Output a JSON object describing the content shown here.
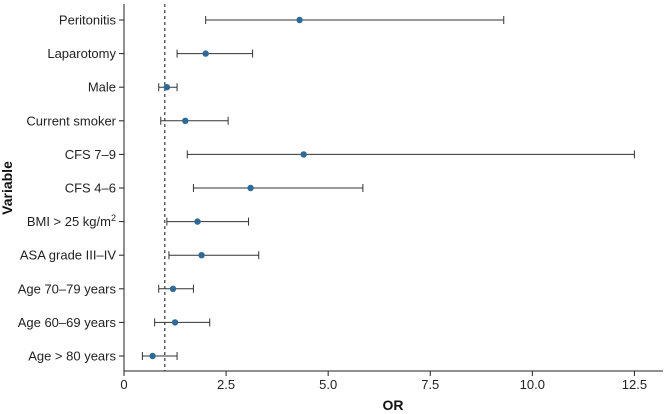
{
  "chart_data": {
    "type": "forest",
    "title": "",
    "xlabel": "OR",
    "ylabel": "Variable",
    "xlim": [
      0,
      13.2
    ],
    "xticks": [
      0,
      2.5,
      5,
      7.5,
      10,
      12.5
    ],
    "xtick_labels": [
      "0",
      "2.5",
      "5.0",
      "7.5",
      "10.0",
      "12.5"
    ],
    "reference_line": 1,
    "reference_style": "dashed",
    "colors": {
      "point": "#2b6a9b",
      "whisker": "#333333",
      "axis": "#222222",
      "reference": "#111111"
    },
    "rows": [
      {
        "label": "Peritonitis",
        "or": 4.3,
        "lower": 2.0,
        "upper": 9.3
      },
      {
        "label": "Laparotomy",
        "or": 2.0,
        "lower": 1.3,
        "upper": 3.15
      },
      {
        "label": "Male",
        "or": 1.05,
        "lower": 0.85,
        "upper": 1.3
      },
      {
        "label": "Current smoker",
        "or": 1.5,
        "lower": 0.9,
        "upper": 2.55
      },
      {
        "label": "CFS 7–9",
        "or": 4.4,
        "lower": 1.55,
        "upper": 12.5
      },
      {
        "label": "CFS 4–6",
        "or": 3.1,
        "lower": 1.7,
        "upper": 5.85
      },
      {
        "label": "BMI > 25 kg/m",
        "label_superscript": "2",
        "or": 1.8,
        "lower": 1.05,
        "upper": 3.05
      },
      {
        "label": "ASA grade III–IV",
        "or": 1.9,
        "lower": 1.1,
        "upper": 3.3
      },
      {
        "label": "Age 70–79 years",
        "or": 1.2,
        "lower": 0.85,
        "upper": 1.7
      },
      {
        "label": "Age 60–69 years",
        "or": 1.25,
        "lower": 0.75,
        "upper": 2.1
      },
      {
        "label": "Age > 80 years",
        "or": 0.7,
        "lower": 0.45,
        "upper": 1.3
      }
    ]
  }
}
